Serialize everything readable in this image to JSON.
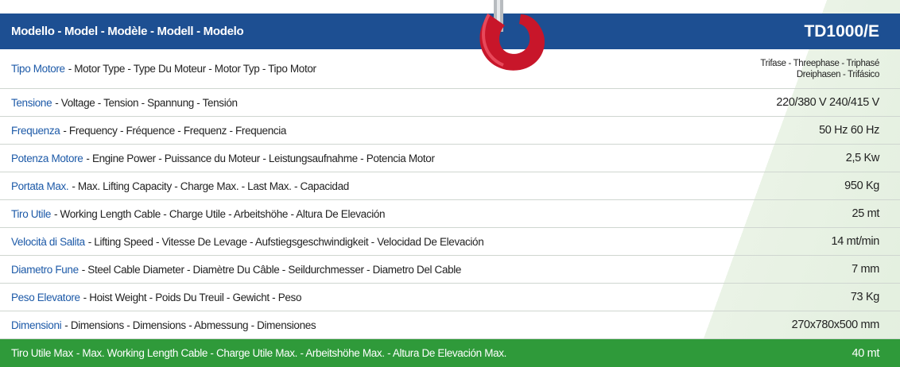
{
  "header": {
    "label": "Modello - Model - Modèle - Modell - Modelo",
    "model": "TD1000/E"
  },
  "rows": [
    {
      "name": "Tipo Motore",
      "rest": "- Motor Type - Type Du Moteur - Motor Typ - Tipo Motor",
      "value": [
        "Trifase - Threephase - Triphasé",
        "Dreiphasen - Trifásico"
      ]
    },
    {
      "name": "Tensione",
      "rest": "- Voltage - Tension - Spannung - Tensión",
      "value": [
        "220/380 V 240/415 V"
      ]
    },
    {
      "name": "Frequenza",
      "rest": "- Frequency - Fréquence - Frequenz - Frequencia",
      "value": [
        "50 Hz 60 Hz"
      ]
    },
    {
      "name": "Potenza Motore",
      "rest": "- Engine Power - Puissance du Moteur - Leistungsaufnahme - Potencia Motor",
      "value": [
        "2,5 Kw"
      ]
    },
    {
      "name": "Portata Max.",
      "rest": "- Max. Lifting Capacity - Charge Max. - Last Max. - Capacidad",
      "value": [
        "950 Kg"
      ]
    },
    {
      "name": "Tiro Utile",
      "rest": "- Working Length Cable - Charge Utile - Arbeitshöhe - Altura De Elevación",
      "value": [
        "25 mt"
      ]
    },
    {
      "name": "Velocità di Salita",
      "rest": "- Lifting Speed - Vitesse De Levage - Aufstiegsgeschwindigkeit - Velocidad De Elevación",
      "value": [
        "14 mt/min"
      ]
    },
    {
      "name": "Diametro Fune",
      "rest": "- Steel Cable Diameter - Diamètre Du Câble - Seildurchmesser - Diametro Del Cable",
      "value": [
        "7 mm"
      ]
    },
    {
      "name": "Peso Elevatore",
      "rest": "- Hoist Weight - Poids Du Treuil - Gewicht - Peso",
      "value": [
        "73 Kg"
      ]
    },
    {
      "name": "Dimensioni",
      "rest": "- Dimensions - Dimensions - Abmessung - Dimensiones",
      "value": [
        "270x780x500 mm"
      ]
    },
    {
      "name": "Tiro Utile Max",
      "rest": "- Max. Working Length Cable - Charge Utile Max. - Arbeitshöhe Max. - Altura De Elevación Max.",
      "value": [
        "40 mt"
      ]
    }
  ]
}
